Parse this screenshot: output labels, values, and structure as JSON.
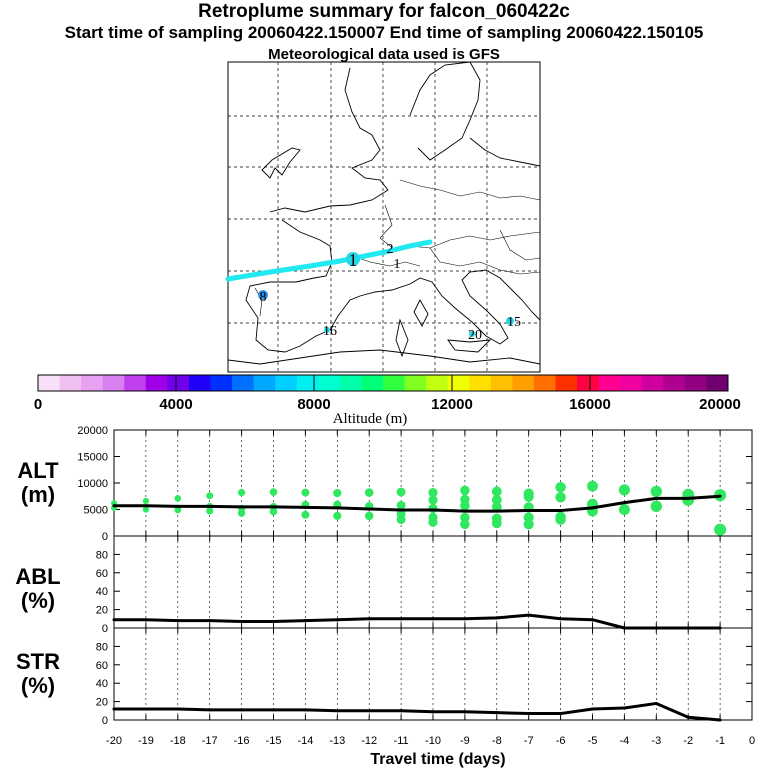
{
  "header": {
    "title": "Retroplume summary for falcon_060422c",
    "sampling_line": "Start time of sampling 20060422.150007     End time of sampling 20060422.150105",
    "met_line": "Meteorological data used is GFS"
  },
  "map": {
    "track_color": "#22e8f0",
    "markers": [
      "1",
      "2",
      "1",
      "8",
      "16",
      "20",
      "15"
    ]
  },
  "colorbar": {
    "label": "Altitude (m)",
    "ticks": [
      "0",
      "4000",
      "8000",
      "12000",
      "16000",
      "20000"
    ],
    "colors": [
      "#f8e0f8",
      "#f0c0f0",
      "#e8a0f0",
      "#d880f0",
      "#c040f0",
      "#a000e8",
      "#7000e8",
      "#2000f8",
      "#0030ff",
      "#0070ff",
      "#00a8ff",
      "#00d0ff",
      "#00f0f0",
      "#00ffd0",
      "#00ffa8",
      "#00ff78",
      "#30ff40",
      "#80ff20",
      "#c0ff10",
      "#f0ff00",
      "#ffe000",
      "#ffc000",
      "#ffa000",
      "#ff7000",
      "#ff3000",
      "#ff0040",
      "#ff0090",
      "#f000a0",
      "#d000a0",
      "#b00090",
      "#900080",
      "#700070"
    ]
  },
  "chart_data": [
    {
      "type": "line",
      "id": "alt",
      "ylabel": "ALT\n(m)",
      "xlabel": "Travel time (days)",
      "x": [
        -20,
        -19,
        -18,
        -17,
        -16,
        -15,
        -14,
        -13,
        -12,
        -11,
        -10,
        -9,
        -8,
        -7,
        -6,
        -5,
        -4,
        -3,
        -2,
        -1
      ],
      "y": [
        5700,
        5700,
        5600,
        5600,
        5500,
        5500,
        5400,
        5300,
        5100,
        4900,
        4900,
        4700,
        4700,
        4800,
        4800,
        5300,
        6300,
        7100,
        7100,
        7500
      ],
      "ylim": [
        0,
        20000
      ],
      "yticks": [
        0,
        5000,
        10000,
        15000,
        20000
      ],
      "scatter_color": "#2fe860",
      "scatter": [
        {
          "x": -20,
          "y": 6200
        },
        {
          "x": -20,
          "y": 5300
        },
        {
          "x": -19,
          "y": 6600
        },
        {
          "x": -19,
          "y": 5000
        },
        {
          "x": -18,
          "y": 7100
        },
        {
          "x": -18,
          "y": 5300
        },
        {
          "x": -18,
          "y": 4900
        },
        {
          "x": -17,
          "y": 7600
        },
        {
          "x": -17,
          "y": 5600
        },
        {
          "x": -17,
          "y": 4700
        },
        {
          "x": -16,
          "y": 8200
        },
        {
          "x": -16,
          "y": 5200
        },
        {
          "x": -16,
          "y": 4300
        },
        {
          "x": -15,
          "y": 8300
        },
        {
          "x": -15,
          "y": 5500
        },
        {
          "x": -15,
          "y": 4600
        },
        {
          "x": -14,
          "y": 8200
        },
        {
          "x": -14,
          "y": 5900
        },
        {
          "x": -14,
          "y": 4000
        },
        {
          "x": -13,
          "y": 8100
        },
        {
          "x": -13,
          "y": 5900
        },
        {
          "x": -13,
          "y": 3800
        },
        {
          "x": -12,
          "y": 8200
        },
        {
          "x": -12,
          "y": 5600
        },
        {
          "x": -12,
          "y": 3800
        },
        {
          "x": -11,
          "y": 8300
        },
        {
          "x": -11,
          "y": 5800
        },
        {
          "x": -11,
          "y": 4200
        },
        {
          "x": -11,
          "y": 3100
        },
        {
          "x": -10,
          "y": 8200
        },
        {
          "x": -10,
          "y": 6800
        },
        {
          "x": -10,
          "y": 5200
        },
        {
          "x": -10,
          "y": 3500
        },
        {
          "x": -10,
          "y": 2600
        },
        {
          "x": -9,
          "y": 8600
        },
        {
          "x": -9,
          "y": 6900
        },
        {
          "x": -9,
          "y": 5700
        },
        {
          "x": -9,
          "y": 3500
        },
        {
          "x": -9,
          "y": 2200
        },
        {
          "x": -8,
          "y": 8400
        },
        {
          "x": -8,
          "y": 6800
        },
        {
          "x": -8,
          "y": 5500
        },
        {
          "x": -8,
          "y": 3300
        },
        {
          "x": -8,
          "y": 2400
        },
        {
          "x": -7,
          "y": 8000
        },
        {
          "x": -7,
          "y": 7400
        },
        {
          "x": -7,
          "y": 5400
        },
        {
          "x": -7,
          "y": 3500
        },
        {
          "x": -7,
          "y": 2200
        },
        {
          "x": -6,
          "y": 9200
        },
        {
          "x": -6,
          "y": 7300
        },
        {
          "x": -6,
          "y": 3600
        },
        {
          "x": -6,
          "y": 3100
        },
        {
          "x": -5,
          "y": 9400
        },
        {
          "x": -5,
          "y": 6000
        },
        {
          "x": -5,
          "y": 4700
        },
        {
          "x": -4,
          "y": 8700
        },
        {
          "x": -4,
          "y": 5000
        },
        {
          "x": -3,
          "y": 8400
        },
        {
          "x": -3,
          "y": 5600
        },
        {
          "x": -2,
          "y": 7800
        },
        {
          "x": -2,
          "y": 6800
        },
        {
          "x": -1,
          "y": 7700
        },
        {
          "x": -1,
          "y": 1200
        }
      ]
    },
    {
      "type": "line",
      "id": "abl",
      "ylabel": "ABL\n(%)",
      "x": [
        -20,
        -19,
        -18,
        -17,
        -16,
        -15,
        -14,
        -13,
        -12,
        -11,
        -10,
        -9,
        -8,
        -7,
        -6,
        -5,
        -4,
        -3,
        -2,
        -1
      ],
      "y": [
        9,
        9,
        8,
        8,
        7,
        7,
        8,
        9,
        10,
        10,
        10,
        10,
        11,
        14,
        10,
        9,
        0,
        0,
        0,
        0
      ],
      "ylim": [
        0,
        100
      ],
      "yticks": [
        0,
        20,
        40,
        60,
        80
      ]
    },
    {
      "type": "line",
      "id": "str",
      "ylabel": "STR\n(%)",
      "x": [
        -20,
        -19,
        -18,
        -17,
        -16,
        -15,
        -14,
        -13,
        -12,
        -11,
        -10,
        -9,
        -8,
        -7,
        -6,
        -5,
        -4,
        -3,
        -2,
        -1
      ],
      "y": [
        12,
        12,
        12,
        11,
        11,
        11,
        11,
        10,
        10,
        10,
        9,
        9,
        8,
        7,
        7,
        12,
        13,
        18,
        3,
        0
      ],
      "ylim": [
        0,
        100
      ],
      "yticks": [
        0,
        20,
        40,
        60,
        80
      ],
      "xticks": [
        "-20",
        "-19",
        "-18",
        "-17",
        "-16",
        "-15",
        "-14",
        "-13",
        "-12",
        "-11",
        "-10",
        "-9",
        "-8",
        "-7",
        "-6",
        "-5",
        "-4",
        "-3",
        "-2",
        "-1",
        "0"
      ]
    }
  ]
}
